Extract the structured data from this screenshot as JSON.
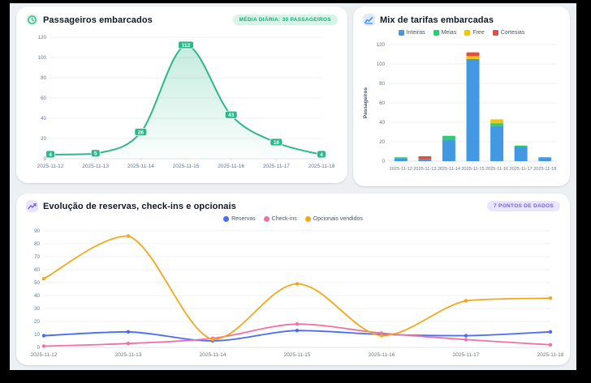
{
  "cards": {
    "passengers": {
      "title": "Passageiros embarcados",
      "badge": "MÉDIA DIÁRIA: 30 PASSAGEIROS",
      "icon": "clock-icon",
      "accent_color": "#2eb88a"
    },
    "fare_mix": {
      "title": "Mix de tarifas embarcadas",
      "icon": "bar-chart-icon",
      "accent_color": "#3b82f6"
    },
    "evolution": {
      "title": "Evolução de reservas, check-ins e opcionais",
      "badge": "7 PONTOS DE DADOS",
      "icon": "trending-up-icon",
      "accent_color": "#7a5af5"
    }
  },
  "chart_data": [
    {
      "id": "passengers",
      "type": "area",
      "title": "Passageiros embarcados",
      "categories": [
        "2025-11-12",
        "2025-11-13",
        "2025-11-14",
        "2025-11-15",
        "2025-11-16",
        "2025-11-17",
        "2025-11-18"
      ],
      "values": [
        4,
        5,
        26,
        112,
        43,
        16,
        4
      ],
      "point_labels": [
        4,
        5,
        26,
        112,
        43,
        16,
        4
      ],
      "color": "#2eb88a",
      "xlabel": "",
      "ylabel": "",
      "ylim": [
        0,
        120
      ],
      "yticks": [
        0,
        20,
        40,
        60,
        80,
        100,
        120
      ],
      "grid": true,
      "legend_position": "none"
    },
    {
      "id": "fare_mix",
      "type": "bar",
      "stacked": true,
      "title": "Mix de tarifas embarcadas",
      "categories": [
        "2025-11-12",
        "2025-11-13",
        "2025-11-14",
        "2025-11-15",
        "2025-11-16",
        "2025-11-17",
        "2025-11-18"
      ],
      "series": [
        {
          "name": "Inteiras",
          "color": "#4299e1",
          "values": [
            3,
            2,
            22,
            105,
            36,
            15,
            4
          ]
        },
        {
          "name": "Meias",
          "color": "#2ecc71",
          "values": [
            1,
            0,
            4,
            0,
            3,
            1,
            0
          ]
        },
        {
          "name": "Free",
          "color": "#f1c40f",
          "values": [
            0,
            0,
            0,
            3,
            4,
            0,
            0
          ]
        },
        {
          "name": "Cortesias",
          "color": "#e74c3c",
          "values": [
            0,
            3,
            0,
            4,
            0,
            0,
            0
          ]
        }
      ],
      "xlabel": "",
      "ylabel": "Passageiros",
      "ylim": [
        0,
        120
      ],
      "yticks": [
        0,
        20,
        40,
        60,
        80,
        100,
        120
      ],
      "grid": true,
      "legend_position": "top"
    },
    {
      "id": "evolution",
      "type": "line",
      "title": "Evolução de reservas, check-ins e opcionais",
      "categories": [
        "2025-11-12",
        "2025-11-13",
        "2025-11-14",
        "2025-11-15",
        "2025-11-16",
        "2025-11-17",
        "2025-11-18"
      ],
      "series": [
        {
          "name": "Reservas",
          "color": "#4a6cf0",
          "values": [
            9,
            12,
            5,
            13,
            10,
            9,
            12
          ]
        },
        {
          "name": "Check-ins",
          "color": "#ee72a3",
          "values": [
            1,
            3,
            7,
            18,
            11,
            6,
            2
          ]
        },
        {
          "name": "Opcionais vendidos",
          "color": "#f3a71b",
          "values": [
            53,
            86,
            6,
            49,
            9,
            36,
            38
          ]
        }
      ],
      "xlabel": "",
      "ylabel": "",
      "ylim": [
        0,
        90
      ],
      "yticks": [
        0,
        10,
        20,
        30,
        40,
        50,
        60,
        70,
        80,
        90
      ],
      "grid": true,
      "legend_position": "top"
    }
  ]
}
